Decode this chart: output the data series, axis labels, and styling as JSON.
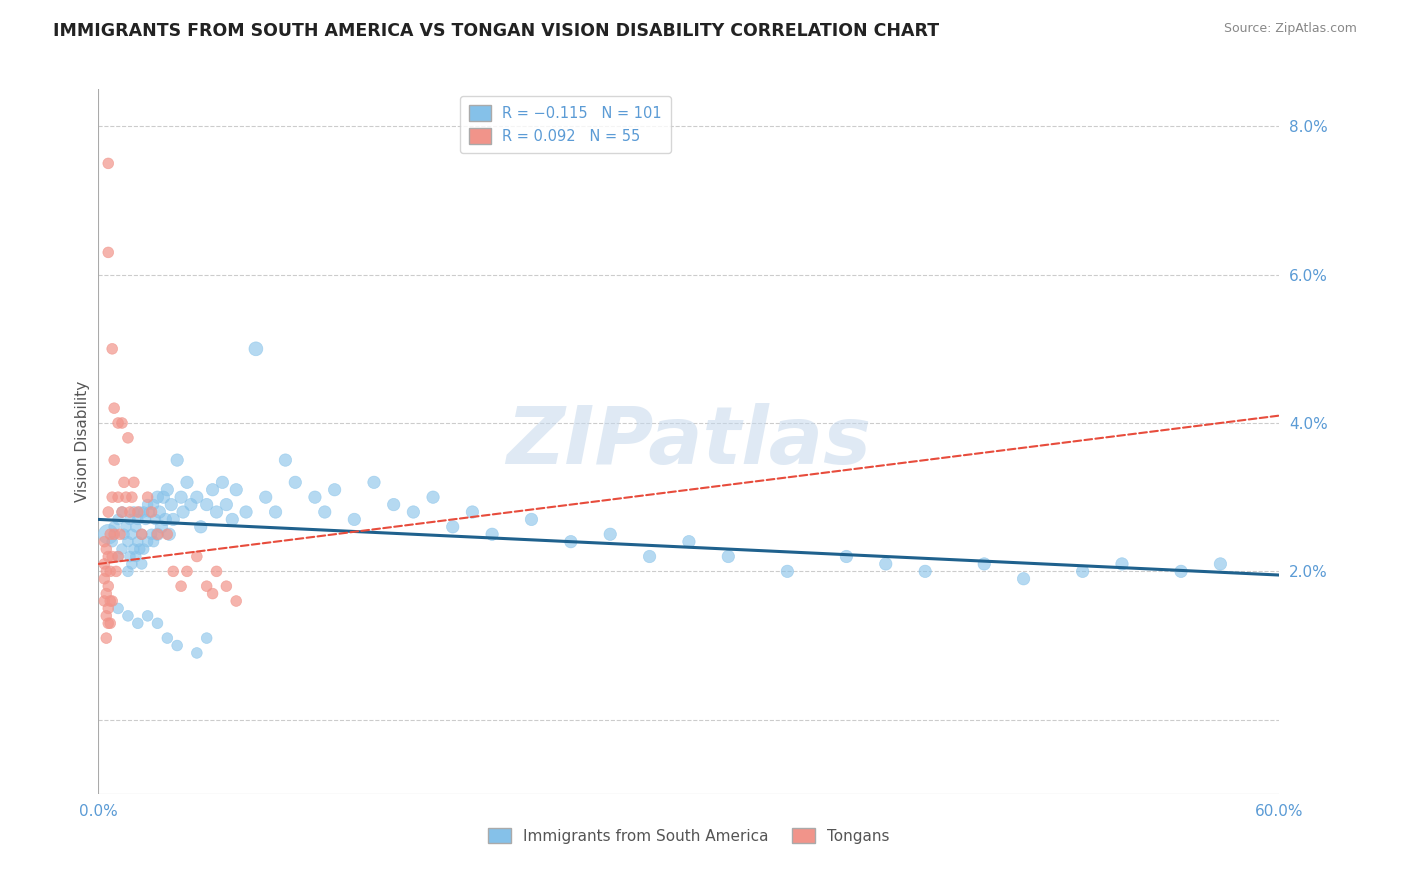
{
  "title": "IMMIGRANTS FROM SOUTH AMERICA VS TONGAN VISION DISABILITY CORRELATION CHART",
  "source": "Source: ZipAtlas.com",
  "ylabel": "Vision Disability",
  "xlim": [
    0.0,
    0.6
  ],
  "ylim": [
    -0.01,
    0.085
  ],
  "yticks": [
    0.0,
    0.02,
    0.04,
    0.06,
    0.08
  ],
  "ytick_labels": [
    "",
    "2.0%",
    "4.0%",
    "6.0%",
    "8.0%"
  ],
  "xticks": [
    0.0,
    0.1,
    0.2,
    0.3,
    0.4,
    0.5,
    0.6
  ],
  "xtick_labels": [
    "0.0%",
    "",
    "",
    "",
    "",
    "",
    "60.0%"
  ],
  "blue_scatter_x": [
    0.005,
    0.007,
    0.008,
    0.01,
    0.01,
    0.012,
    0.012,
    0.013,
    0.014,
    0.015,
    0.015,
    0.016,
    0.016,
    0.017,
    0.017,
    0.018,
    0.018,
    0.019,
    0.019,
    0.02,
    0.02,
    0.021,
    0.021,
    0.022,
    0.022,
    0.023,
    0.023,
    0.024,
    0.025,
    0.025,
    0.026,
    0.027,
    0.028,
    0.028,
    0.029,
    0.03,
    0.03,
    0.031,
    0.032,
    0.033,
    0.034,
    0.035,
    0.036,
    0.037,
    0.038,
    0.04,
    0.042,
    0.043,
    0.045,
    0.047,
    0.05,
    0.052,
    0.055,
    0.058,
    0.06,
    0.063,
    0.065,
    0.068,
    0.07,
    0.075,
    0.08,
    0.085,
    0.09,
    0.095,
    0.1,
    0.11,
    0.115,
    0.12,
    0.13,
    0.14,
    0.15,
    0.16,
    0.17,
    0.18,
    0.19,
    0.2,
    0.22,
    0.24,
    0.26,
    0.28,
    0.3,
    0.32,
    0.35,
    0.38,
    0.4,
    0.42,
    0.45,
    0.47,
    0.5,
    0.52,
    0.55,
    0.57,
    0.01,
    0.015,
    0.02,
    0.025,
    0.03,
    0.035,
    0.04,
    0.05,
    0.055
  ],
  "blue_scatter_y": [
    0.025,
    0.024,
    0.026,
    0.027,
    0.022,
    0.028,
    0.023,
    0.025,
    0.026,
    0.024,
    0.02,
    0.027,
    0.022,
    0.025,
    0.021,
    0.028,
    0.023,
    0.026,
    0.022,
    0.027,
    0.024,
    0.028,
    0.023,
    0.025,
    0.021,
    0.028,
    0.023,
    0.027,
    0.029,
    0.024,
    0.028,
    0.025,
    0.029,
    0.024,
    0.027,
    0.03,
    0.025,
    0.028,
    0.026,
    0.03,
    0.027,
    0.031,
    0.025,
    0.029,
    0.027,
    0.035,
    0.03,
    0.028,
    0.032,
    0.029,
    0.03,
    0.026,
    0.029,
    0.031,
    0.028,
    0.032,
    0.029,
    0.027,
    0.031,
    0.028,
    0.05,
    0.03,
    0.028,
    0.035,
    0.032,
    0.03,
    0.028,
    0.031,
    0.027,
    0.032,
    0.029,
    0.028,
    0.03,
    0.026,
    0.028,
    0.025,
    0.027,
    0.024,
    0.025,
    0.022,
    0.024,
    0.022,
    0.02,
    0.022,
    0.021,
    0.02,
    0.021,
    0.019,
    0.02,
    0.021,
    0.02,
    0.021,
    0.015,
    0.014,
    0.013,
    0.014,
    0.013,
    0.011,
    0.01,
    0.009,
    0.011
  ],
  "blue_scatter_sizes": [
    200,
    60,
    60,
    60,
    60,
    60,
    60,
    60,
    60,
    60,
    60,
    60,
    60,
    60,
    60,
    60,
    60,
    60,
    60,
    60,
    60,
    60,
    60,
    60,
    60,
    60,
    60,
    60,
    60,
    60,
    60,
    60,
    60,
    60,
    60,
    80,
    80,
    80,
    80,
    80,
    80,
    80,
    80,
    80,
    80,
    80,
    80,
    80,
    80,
    80,
    80,
    80,
    80,
    80,
    80,
    80,
    80,
    80,
    80,
    80,
    100,
    80,
    80,
    80,
    80,
    80,
    80,
    80,
    80,
    80,
    80,
    80,
    80,
    80,
    80,
    80,
    80,
    80,
    80,
    80,
    80,
    80,
    80,
    80,
    80,
    80,
    80,
    80,
    80,
    80,
    80,
    80,
    60,
    60,
    60,
    60,
    60,
    60,
    60,
    60,
    60
  ],
  "pink_scatter_x": [
    0.003,
    0.003,
    0.003,
    0.003,
    0.004,
    0.004,
    0.004,
    0.004,
    0.004,
    0.005,
    0.005,
    0.005,
    0.005,
    0.005,
    0.005,
    0.005,
    0.006,
    0.006,
    0.006,
    0.006,
    0.007,
    0.007,
    0.007,
    0.007,
    0.008,
    0.008,
    0.008,
    0.009,
    0.01,
    0.01,
    0.01,
    0.011,
    0.012,
    0.012,
    0.013,
    0.014,
    0.015,
    0.016,
    0.017,
    0.018,
    0.02,
    0.022,
    0.025,
    0.027,
    0.03,
    0.035,
    0.038,
    0.042,
    0.045,
    0.05,
    0.055,
    0.058,
    0.06,
    0.065,
    0.07
  ],
  "pink_scatter_y": [
    0.024,
    0.021,
    0.019,
    0.016,
    0.023,
    0.02,
    0.017,
    0.014,
    0.011,
    0.075,
    0.063,
    0.028,
    0.022,
    0.018,
    0.015,
    0.013,
    0.025,
    0.02,
    0.016,
    0.013,
    0.05,
    0.03,
    0.022,
    0.016,
    0.042,
    0.035,
    0.025,
    0.02,
    0.04,
    0.03,
    0.022,
    0.025,
    0.04,
    0.028,
    0.032,
    0.03,
    0.038,
    0.028,
    0.03,
    0.032,
    0.028,
    0.025,
    0.03,
    0.028,
    0.025,
    0.025,
    0.02,
    0.018,
    0.02,
    0.022,
    0.018,
    0.017,
    0.02,
    0.018,
    0.016
  ],
  "pink_scatter_sizes": [
    60,
    60,
    60,
    60,
    60,
    60,
    60,
    60,
    60,
    60,
    60,
    60,
    60,
    60,
    60,
    60,
    60,
    60,
    60,
    60,
    60,
    60,
    60,
    60,
    60,
    60,
    60,
    60,
    60,
    60,
    60,
    60,
    60,
    60,
    60,
    60,
    60,
    60,
    60,
    60,
    60,
    60,
    60,
    60,
    60,
    60,
    60,
    60,
    60,
    60,
    60,
    60,
    60,
    60,
    60
  ],
  "blue_trend_x": [
    0.0,
    0.6
  ],
  "blue_trend_y": [
    0.027,
    0.0195
  ],
  "pink_trend_x": [
    0.0,
    0.6
  ],
  "pink_trend_y": [
    0.021,
    0.041
  ],
  "watermark_text": "ZIPatlas",
  "background_color": "#ffffff",
  "grid_color": "#cccccc",
  "axis_tick_color": "#5B9BD5",
  "blue_color": "#85C1E9",
  "pink_color": "#F1948A",
  "blue_line_color": "#1F618D",
  "pink_line_color": "#E74C3C",
  "ylabel_color": "#555555",
  "title_color": "#222222",
  "source_color": "#888888"
}
